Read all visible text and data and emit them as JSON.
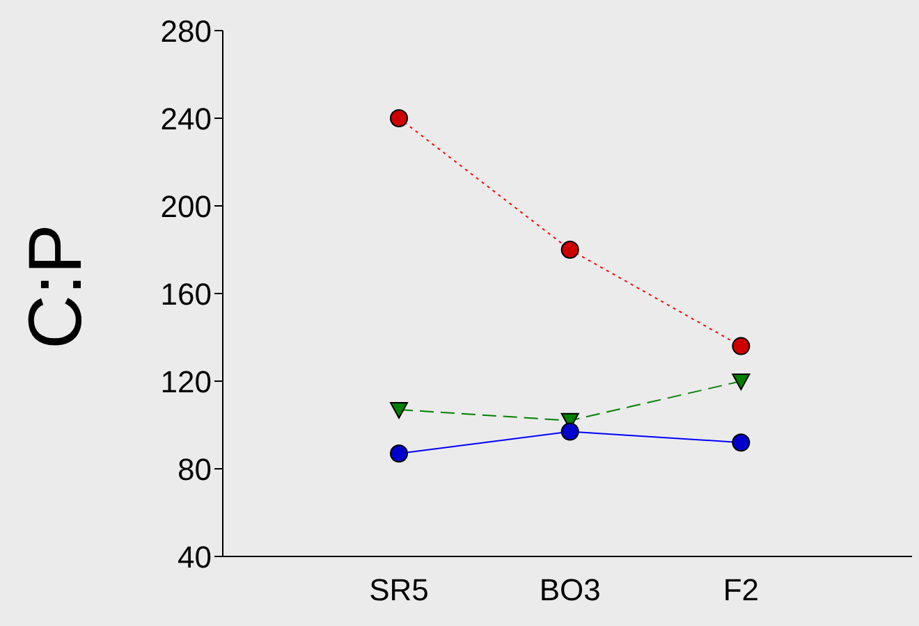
{
  "chart_data": {
    "type": "line",
    "ylabel": "C:P",
    "categories": [
      "SR5",
      "BO3",
      "F2"
    ],
    "ylim": [
      40,
      280
    ],
    "yticks": [
      40,
      80,
      120,
      160,
      200,
      240,
      280
    ],
    "grid": false,
    "legend": false,
    "series": [
      {
        "color": "#ff0000",
        "values": [
          240,
          180,
          136
        ],
        "marker": "circle",
        "line_style": "dotted"
      },
      {
        "color": "#008000",
        "values": [
          107,
          102,
          120
        ],
        "marker": "triangle",
        "line_style": "dashed"
      },
      {
        "color": "#0000ff",
        "values": [
          87,
          97,
          92
        ],
        "marker": "circle",
        "line_style": "solid"
      }
    ]
  }
}
